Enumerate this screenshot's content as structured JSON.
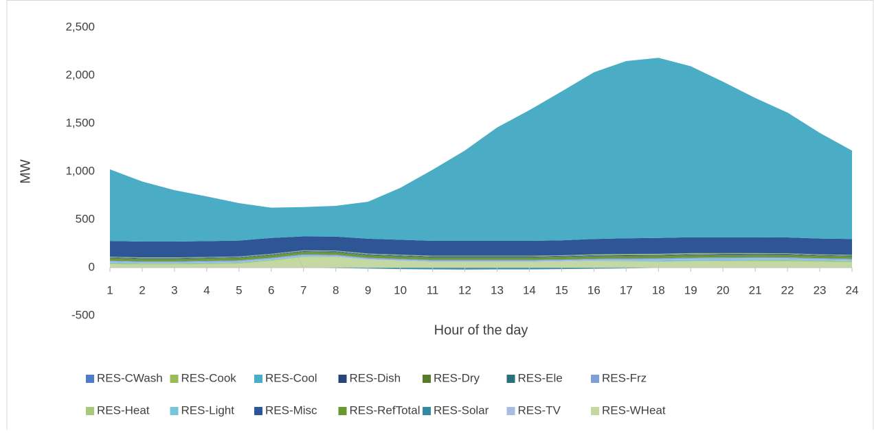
{
  "chart_data": {
    "type": "stacked-area",
    "x_label": "Hour of the day",
    "y_label": "MW",
    "categories": [
      "1",
      "2",
      "3",
      "4",
      "5",
      "6",
      "7",
      "8",
      "9",
      "10",
      "11",
      "12",
      "13",
      "14",
      "15",
      "16",
      "17",
      "18",
      "19",
      "20",
      "21",
      "22",
      "23",
      "24"
    ],
    "ylim": [
      -500,
      2500
    ],
    "yticks": [
      {
        "value": -500,
        "label": "-500"
      },
      0,
      500,
      {
        "value": 1000,
        "label": "1,000"
      },
      {
        "value": 1500,
        "label": "1,500"
      },
      {
        "value": 2000,
        "label": "2,000"
      },
      {
        "value": 2500,
        "label": "2,500"
      }
    ],
    "grid": false,
    "legend": "bottom",
    "series": [
      {
        "name": "RES-CWash",
        "color": "#4f7cc6",
        "values": [
          3,
          3,
          3,
          3,
          3,
          3,
          3,
          4,
          4,
          4,
          4,
          4,
          4,
          4,
          4,
          4,
          4,
          4,
          4,
          4,
          4,
          4,
          3,
          3
        ]
      },
      {
        "name": "RES-Cook",
        "color": "#9bbb59",
        "values": [
          5,
          5,
          5,
          5,
          5,
          5,
          6,
          6,
          6,
          6,
          6,
          6,
          6,
          6,
          6,
          8,
          10,
          10,
          10,
          8,
          6,
          5,
          5,
          5
        ]
      },
      {
        "name": "RES-Cool",
        "color": "#4bacc6",
        "values": [
          745,
          625,
          535,
          465,
          390,
          315,
          305,
          320,
          385,
          540,
          740,
          940,
          1180,
          1360,
          1550,
          1735,
          1845,
          1875,
          1780,
          1620,
          1450,
          1300,
          1100,
          920
        ]
      },
      {
        "name": "RES-Dish",
        "color": "#264478",
        "values": [
          3,
          3,
          3,
          3,
          3,
          3,
          3,
          4,
          4,
          4,
          4,
          4,
          4,
          4,
          4,
          4,
          4,
          4,
          4,
          4,
          4,
          4,
          3,
          3
        ]
      },
      {
        "name": "RES-Dry",
        "color": "#5a7a2b",
        "values": [
          5,
          5,
          5,
          5,
          5,
          5,
          5,
          5,
          5,
          5,
          5,
          5,
          5,
          5,
          5,
          5,
          5,
          5,
          5,
          5,
          5,
          5,
          5,
          5
        ]
      },
      {
        "name": "RES-Ele",
        "color": "#2b6f7a",
        "values": [
          4,
          4,
          4,
          4,
          4,
          4,
          4,
          4,
          4,
          4,
          4,
          4,
          4,
          4,
          4,
          4,
          4,
          4,
          4,
          4,
          4,
          4,
          4,
          4
        ]
      },
      {
        "name": "RES-Frz",
        "color": "#7f9fd6",
        "values": [
          10,
          10,
          10,
          10,
          10,
          10,
          10,
          10,
          10,
          10,
          10,
          10,
          10,
          10,
          10,
          10,
          10,
          10,
          10,
          10,
          10,
          10,
          10,
          10
        ]
      },
      {
        "name": "RES-Heat",
        "color": "#a9c97a",
        "values": [
          10,
          10,
          10,
          10,
          10,
          8,
          5,
          3,
          2,
          1,
          0,
          0,
          0,
          0,
          0,
          0,
          1,
          2,
          4,
          6,
          8,
          10,
          10,
          10
        ]
      },
      {
        "name": "RES-Light",
        "color": "#78c4d8",
        "values": [
          10,
          8,
          8,
          8,
          8,
          8,
          6,
          4,
          3,
          3,
          3,
          3,
          3,
          3,
          3,
          5,
          10,
          15,
          15,
          15,
          15,
          12,
          10,
          10
        ]
      },
      {
        "name": "RES-Misc",
        "color": "#2e5596",
        "values": [
          165,
          165,
          165,
          165,
          165,
          165,
          145,
          145,
          155,
          155,
          155,
          155,
          155,
          155,
          155,
          160,
          162,
          165,
          165,
          165,
          165,
          165,
          165,
          165
        ]
      },
      {
        "name": "RES-RefTotal",
        "color": "#6a9a2f",
        "values": [
          20,
          20,
          20,
          20,
          20,
          20,
          20,
          20,
          20,
          20,
          20,
          20,
          20,
          20,
          20,
          20,
          20,
          20,
          20,
          20,
          20,
          20,
          20,
          20
        ]
      },
      {
        "name": "RES-Solar",
        "color": "#2f8ca4",
        "values": [
          0,
          0,
          0,
          0,
          0,
          0,
          -2,
          -5,
          -10,
          -15,
          -18,
          -20,
          -18,
          -18,
          -15,
          -12,
          -8,
          -3,
          0,
          0,
          0,
          0,
          0,
          0
        ]
      },
      {
        "name": "RES-TV",
        "color": "#a6bde4",
        "values": [
          8,
          8,
          8,
          8,
          8,
          8,
          8,
          8,
          8,
          8,
          8,
          8,
          8,
          8,
          8,
          8,
          10,
          10,
          10,
          10,
          10,
          10,
          8,
          8
        ]
      },
      {
        "name": "RES-WHeat",
        "color": "#c3d9a1",
        "values": [
          35,
          30,
          30,
          35,
          40,
          70,
          110,
          110,
          80,
          70,
          60,
          60,
          60,
          60,
          65,
          70,
          65,
          60,
          65,
          65,
          65,
          65,
          60,
          55
        ]
      }
    ]
  }
}
